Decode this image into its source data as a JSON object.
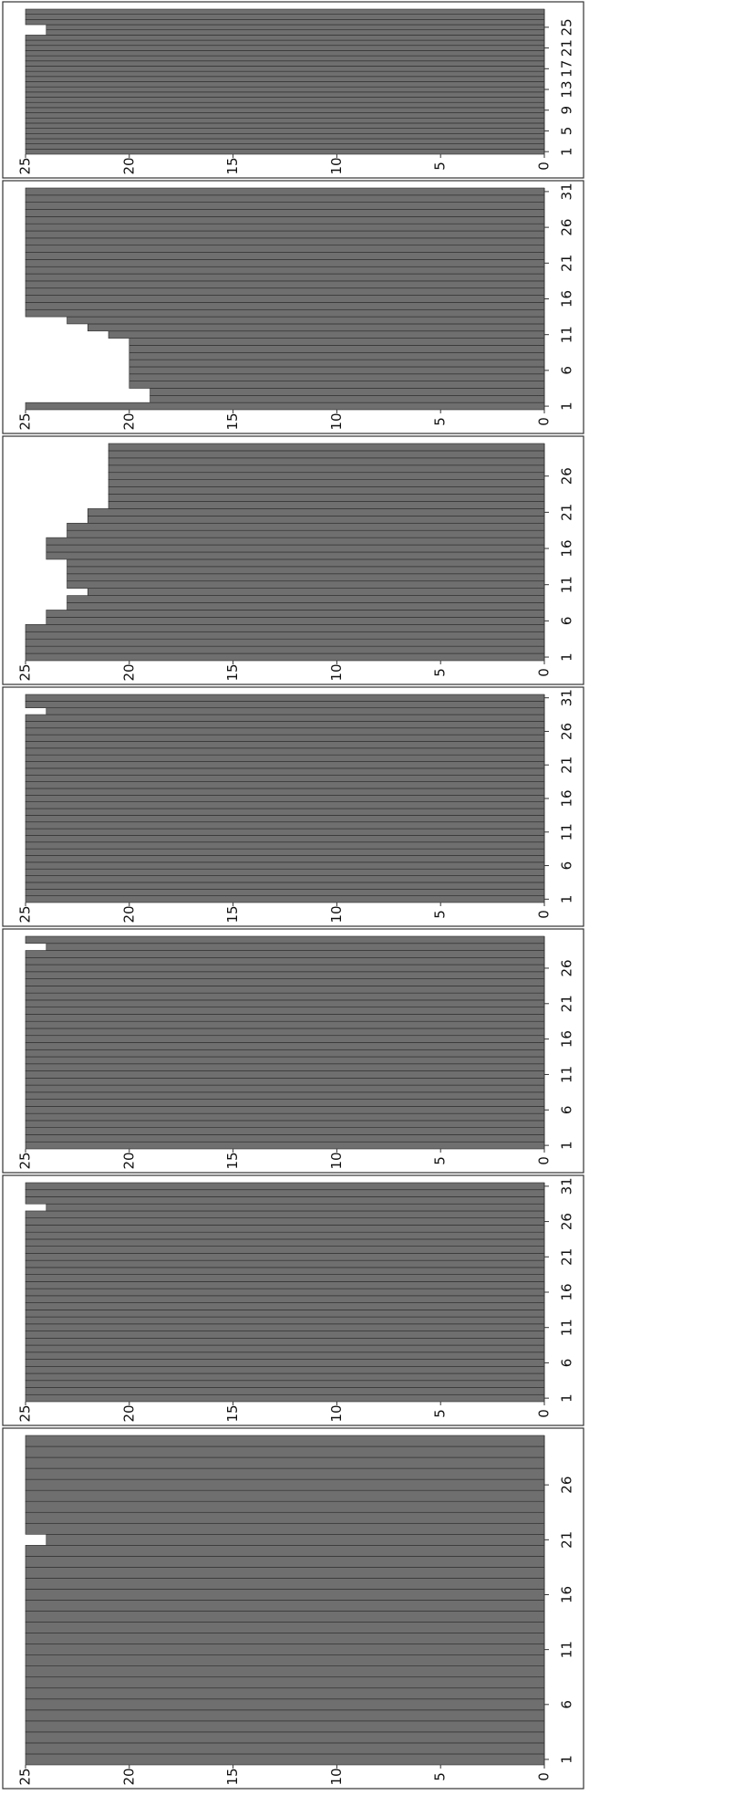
{
  "chart_data": [
    {
      "type": "bar",
      "color": "#6f6f6f",
      "ylim": [
        0,
        25
      ],
      "yticks": [
        0,
        5,
        10,
        15,
        20,
        25
      ],
      "categories": [
        1,
        null,
        null,
        null,
        null,
        6,
        null,
        null,
        null,
        null,
        11,
        null,
        null,
        null,
        null,
        16,
        null,
        null,
        null,
        null,
        21,
        null,
        null,
        null,
        null,
        26,
        null,
        null,
        null,
        null
      ],
      "values": [
        25,
        25,
        25,
        25,
        25,
        25,
        25,
        25,
        25,
        25,
        25,
        25,
        25,
        25,
        25,
        25,
        25,
        25,
        25,
        25,
        24,
        25,
        25,
        25,
        25,
        25,
        25,
        25,
        25,
        25
      ]
    },
    {
      "type": "bar",
      "color": "#6f6f6f",
      "ylim": [
        0,
        25
      ],
      "yticks": [
        0,
        5,
        10,
        15,
        20,
        25
      ],
      "categories": [
        1,
        null,
        null,
        null,
        null,
        6,
        null,
        null,
        null,
        null,
        11,
        null,
        null,
        null,
        null,
        16,
        null,
        null,
        null,
        null,
        21,
        null,
        null,
        null,
        null,
        26,
        null,
        null,
        null,
        null,
        31
      ],
      "values": [
        25,
        25,
        25,
        25,
        25,
        25,
        25,
        25,
        25,
        25,
        25,
        25,
        25,
        25,
        25,
        25,
        25,
        25,
        25,
        25,
        25,
        25,
        25,
        25,
        25,
        25,
        25,
        24,
        25,
        25,
        25
      ]
    },
    {
      "type": "bar",
      "color": "#6f6f6f",
      "ylim": [
        0,
        25
      ],
      "yticks": [
        0,
        5,
        10,
        15,
        20,
        25
      ],
      "categories": [
        1,
        null,
        null,
        null,
        null,
        6,
        null,
        null,
        null,
        null,
        11,
        null,
        null,
        null,
        null,
        16,
        null,
        null,
        null,
        null,
        21,
        null,
        null,
        null,
        null,
        26,
        null,
        null,
        null,
        null
      ],
      "values": [
        25,
        25,
        25,
        25,
        25,
        25,
        25,
        25,
        25,
        25,
        25,
        25,
        25,
        25,
        25,
        25,
        25,
        25,
        25,
        25,
        25,
        25,
        25,
        25,
        25,
        25,
        25,
        25,
        24,
        25
      ]
    },
    {
      "type": "bar",
      "color": "#6f6f6f",
      "ylim": [
        0,
        25
      ],
      "yticks": [
        0,
        5,
        10,
        15,
        20,
        25
      ],
      "categories": [
        1,
        null,
        null,
        null,
        null,
        6,
        null,
        null,
        null,
        null,
        11,
        null,
        null,
        null,
        null,
        16,
        null,
        null,
        null,
        null,
        21,
        null,
        null,
        null,
        null,
        26,
        null,
        null,
        null,
        null,
        31
      ],
      "values": [
        25,
        25,
        25,
        25,
        25,
        25,
        25,
        25,
        25,
        25,
        25,
        25,
        25,
        25,
        25,
        25,
        25,
        25,
        25,
        25,
        25,
        25,
        25,
        25,
        25,
        25,
        25,
        25,
        24,
        25,
        25
      ]
    },
    {
      "type": "bar",
      "color": "#6f6f6f",
      "ylim": [
        0,
        25
      ],
      "yticks": [
        0,
        5,
        10,
        15,
        20,
        25
      ],
      "categories": [
        1,
        null,
        null,
        null,
        null,
        6,
        null,
        null,
        null,
        null,
        11,
        null,
        null,
        null,
        null,
        16,
        null,
        null,
        null,
        null,
        21,
        null,
        null,
        null,
        null,
        26,
        null,
        null,
        null,
        null
      ],
      "values": [
        25,
        25,
        25,
        25,
        25,
        24,
        24,
        23,
        23,
        22,
        23,
        23,
        23,
        23,
        24,
        24,
        24,
        23,
        23,
        22,
        22,
        21,
        21,
        21,
        21,
        21,
        21,
        21,
        21,
        21
      ]
    },
    {
      "type": "bar",
      "color": "#6f6f6f",
      "ylim": [
        0,
        25
      ],
      "yticks": [
        0,
        5,
        10,
        15,
        20,
        25
      ],
      "categories": [
        1,
        null,
        null,
        null,
        null,
        6,
        null,
        null,
        null,
        null,
        11,
        null,
        null,
        null,
        null,
        16,
        null,
        null,
        null,
        null,
        21,
        null,
        null,
        null,
        null,
        26,
        null,
        null,
        null,
        null,
        31
      ],
      "values": [
        25,
        19,
        19,
        20,
        20,
        20,
        20,
        20,
        20,
        20,
        21,
        22,
        23,
        25,
        25,
        25,
        25,
        25,
        25,
        25,
        25,
        25,
        25,
        25,
        25,
        25,
        25,
        25,
        25,
        25,
        25
      ]
    },
    {
      "type": "bar",
      "color": "#6f6f6f",
      "ylim": [
        0,
        25
      ],
      "yticks": [
        0,
        5,
        10,
        15,
        20,
        25
      ],
      "categories": [
        1,
        null,
        null,
        null,
        5,
        null,
        null,
        null,
        9,
        null,
        null,
        null,
        13,
        null,
        null,
        null,
        17,
        null,
        null,
        null,
        21,
        null,
        null,
        null,
        25,
        null,
        null,
        null
      ],
      "values": [
        25,
        25,
        25,
        25,
        25,
        25,
        25,
        25,
        25,
        25,
        25,
        25,
        25,
        25,
        25,
        25,
        25,
        25,
        25,
        25,
        25,
        25,
        25,
        24,
        24,
        25,
        25,
        25
      ]
    }
  ]
}
